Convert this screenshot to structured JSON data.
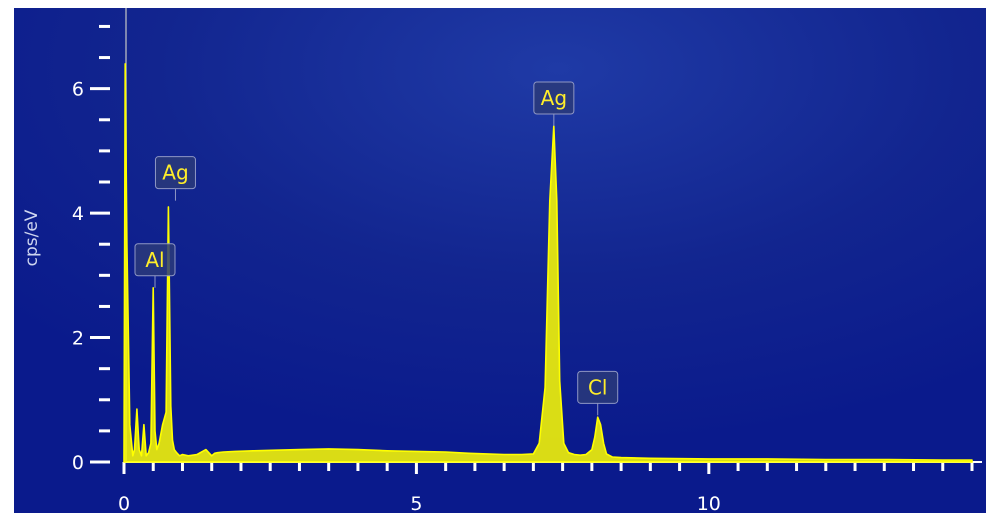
{
  "chart_data": {
    "type": "line",
    "title": "",
    "xlabel": "",
    "ylabel": "cps/eV",
    "xlim": [
      0,
      14.5
    ],
    "ylim": [
      0,
      7.2
    ],
    "x_ticks": [
      "0",
      "5",
      "10"
    ],
    "y_ticks": [
      "0",
      "2",
      "4",
      "6"
    ],
    "grid": false,
    "colors": {
      "background": "#0a1a8c",
      "background_glow": "#1f3aa6",
      "spectrum": "#ffff00",
      "label_text": "#ffee2a",
      "label_box": "#2a3a7a",
      "axis": "#ffffff"
    },
    "series": [
      {
        "x": [
          0,
          0.02,
          0.05,
          0.1,
          0.15,
          0.18,
          0.22,
          0.26,
          0.3,
          0.34,
          0.38,
          0.42,
          0.46,
          0.5,
          0.53,
          0.56,
          0.6,
          0.66,
          0.72,
          0.76,
          0.8,
          0.83,
          0.86,
          0.9,
          0.95,
          1.0,
          1.1,
          1.25,
          1.4,
          1.5,
          1.55,
          1.6,
          1.7,
          1.9,
          2.2,
          2.6,
          3.0,
          3.5,
          4.0,
          4.5,
          5.0,
          5.5,
          5.9,
          6.2,
          6.5,
          6.8,
          7.0,
          7.1,
          7.2,
          7.28,
          7.35,
          7.4,
          7.45,
          7.52,
          7.6,
          7.7,
          7.8,
          7.9,
          8.0,
          8.05,
          8.1,
          8.15,
          8.2,
          8.25,
          8.35,
          8.5,
          9.0,
          10.0,
          11.0,
          12.0,
          13.0,
          14.0,
          14.5
        ],
        "y": [
          0.05,
          6.4,
          3.5,
          0.6,
          0.1,
          0.2,
          0.85,
          0.2,
          0.1,
          0.6,
          0.1,
          0.15,
          0.3,
          2.8,
          0.5,
          0.2,
          0.3,
          0.6,
          0.8,
          4.1,
          0.9,
          0.35,
          0.2,
          0.15,
          0.1,
          0.12,
          0.1,
          0.12,
          0.2,
          0.1,
          0.14,
          0.15,
          0.16,
          0.17,
          0.18,
          0.19,
          0.2,
          0.21,
          0.2,
          0.18,
          0.17,
          0.16,
          0.14,
          0.13,
          0.12,
          0.12,
          0.13,
          0.3,
          1.2,
          4.2,
          5.4,
          4.2,
          1.3,
          0.3,
          0.15,
          0.12,
          0.11,
          0.12,
          0.2,
          0.4,
          0.72,
          0.6,
          0.3,
          0.13,
          0.08,
          0.07,
          0.06,
          0.05,
          0.05,
          0.04,
          0.04,
          0.03,
          0.03
        ]
      }
    ],
    "annotations": [
      {
        "label": "Al",
        "x": 0.53,
        "y": 2.8
      },
      {
        "label": "Ag",
        "x": 0.88,
        "y": 4.2
      },
      {
        "label": "Ag",
        "x": 7.35,
        "y": 5.4
      },
      {
        "label": "Cl",
        "x": 8.1,
        "y": 0.75
      }
    ]
  }
}
